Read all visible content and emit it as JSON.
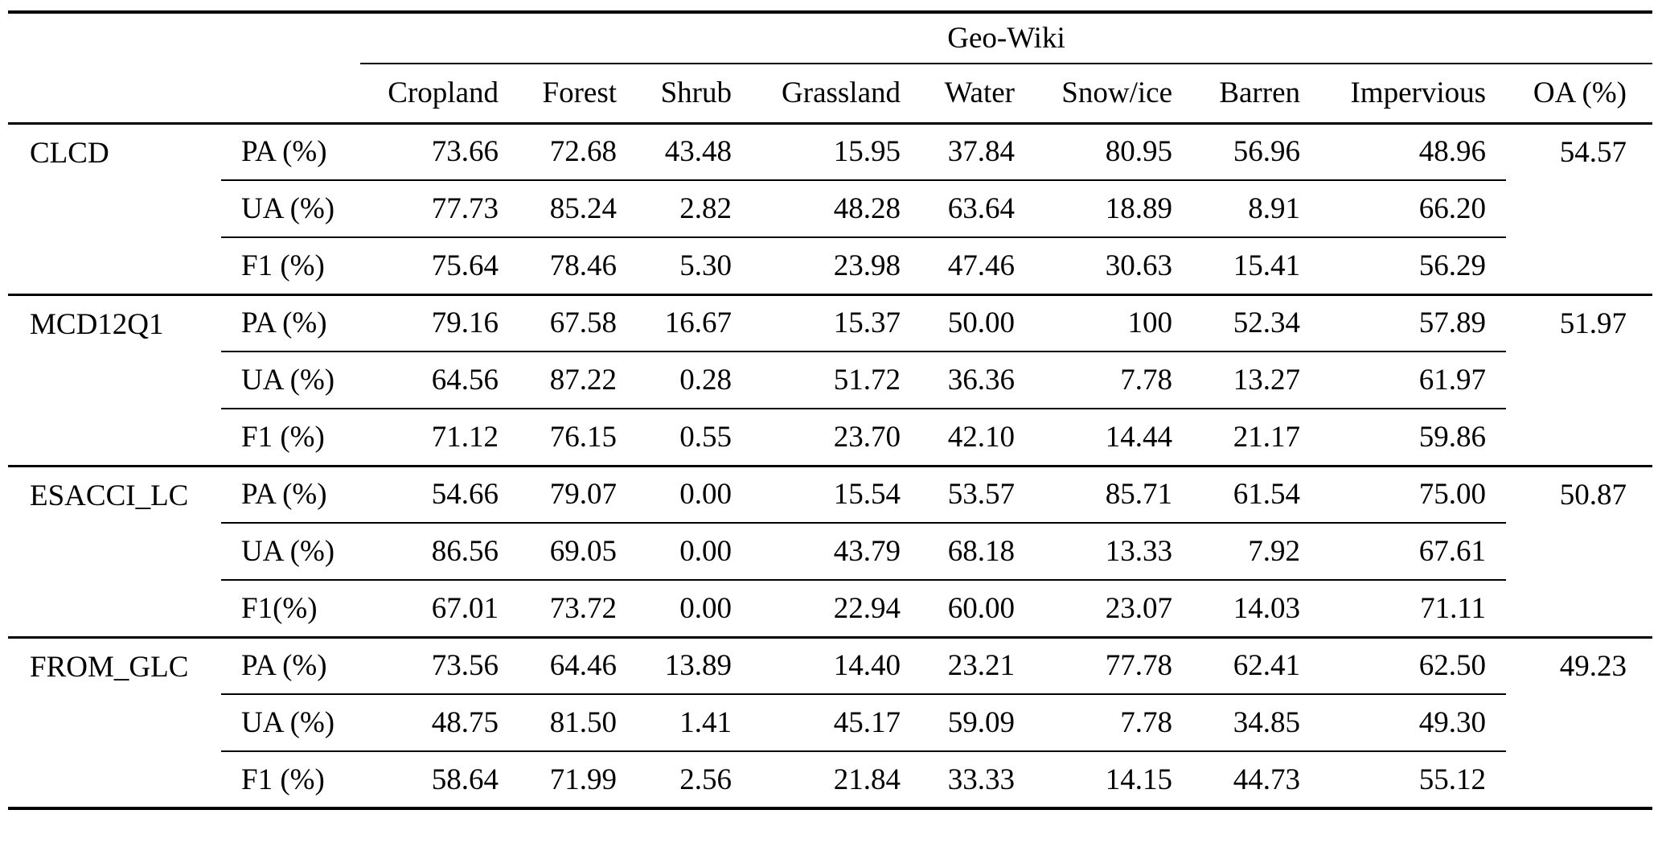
{
  "colors": {
    "background": "#ffffff",
    "text": "#000000",
    "rule": "#000000"
  },
  "table": {
    "group_header": "Geo-Wiki",
    "columns": [
      "Cropland",
      "Forest",
      "Shrub",
      "Grassland",
      "Water",
      "Snow/ice",
      "Barren",
      "Impervious",
      "OA (%)"
    ],
    "products": [
      {
        "name": "CLCD",
        "rows": [
          {
            "metric": "PA (%)",
            "values": [
              "73.66",
              "72.68",
              "43.48",
              "15.95",
              "37.84",
              "80.95",
              "56.96",
              "48.96"
            ],
            "oa": "54.57"
          },
          {
            "metric": "UA (%)",
            "values": [
              "77.73",
              "85.24",
              "2.82",
              "48.28",
              "63.64",
              "18.89",
              "8.91",
              "66.20"
            ],
            "oa": ""
          },
          {
            "metric": "F1 (%)",
            "values": [
              "75.64",
              "78.46",
              "5.30",
              "23.98",
              "47.46",
              "30.63",
              "15.41",
              "56.29"
            ],
            "oa": ""
          }
        ]
      },
      {
        "name": "MCD12Q1",
        "rows": [
          {
            "metric": "PA (%)",
            "values": [
              "79.16",
              "67.58",
              "16.67",
              "15.37",
              "50.00",
              "100",
              "52.34",
              "57.89"
            ],
            "oa": "51.97"
          },
          {
            "metric": "UA (%)",
            "values": [
              "64.56",
              "87.22",
              "0.28",
              "51.72",
              "36.36",
              "7.78",
              "13.27",
              "61.97"
            ],
            "oa": ""
          },
          {
            "metric": "F1 (%)",
            "values": [
              "71.12",
              "76.15",
              "0.55",
              "23.70",
              "42.10",
              "14.44",
              "21.17",
              "59.86"
            ],
            "oa": ""
          }
        ]
      },
      {
        "name": "ESACCI_LC",
        "rows": [
          {
            "metric": "PA (%)",
            "values": [
              "54.66",
              "79.07",
              "0.00",
              "15.54",
              "53.57",
              "85.71",
              "61.54",
              "75.00"
            ],
            "oa": "50.87"
          },
          {
            "metric": "UA (%)",
            "values": [
              "86.56",
              "69.05",
              "0.00",
              "43.79",
              "68.18",
              "13.33",
              "7.92",
              "67.61"
            ],
            "oa": ""
          },
          {
            "metric": "F1(%)",
            "values": [
              "67.01",
              "73.72",
              "0.00",
              "22.94",
              "60.00",
              "23.07",
              "14.03",
              "71.11"
            ],
            "oa": ""
          }
        ]
      },
      {
        "name": "FROM_GLC",
        "rows": [
          {
            "metric": "PA (%)",
            "values": [
              "73.56",
              "64.46",
              "13.89",
              "14.40",
              "23.21",
              "77.78",
              "62.41",
              "62.50"
            ],
            "oa": "49.23"
          },
          {
            "metric": "UA (%)",
            "values": [
              "48.75",
              "81.50",
              "1.41",
              "45.17",
              "59.09",
              "7.78",
              "34.85",
              "49.30"
            ],
            "oa": ""
          },
          {
            "metric": "F1 (%)",
            "values": [
              "58.64",
              "71.99",
              "2.56",
              "21.84",
              "33.33",
              "14.15",
              "44.73",
              "55.12"
            ],
            "oa": ""
          }
        ]
      }
    ]
  }
}
